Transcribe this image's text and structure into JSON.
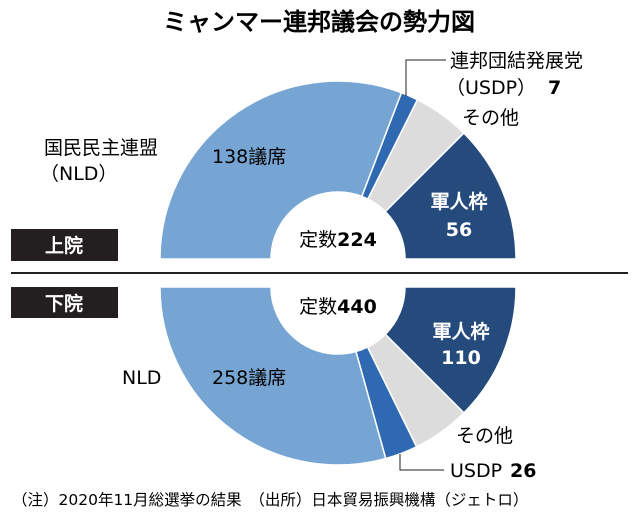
{
  "chart_data": {
    "type": "pie",
    "title": "ミャンマー連邦議会の勢力図",
    "colors": {
      "nld": "#76a5d3",
      "usdp": "#2e69b2",
      "other": "#dcdcdc",
      "military": "#244b7b",
      "house_badge": "#231f20"
    },
    "charts": [
      {
        "house": "上院",
        "total_label": "定数",
        "total": 224,
        "orientation": "upper-semicircle",
        "slices": [
          {
            "key": "nld",
            "name": "国民民主連盟（NLD）",
            "value": 138,
            "label": "138議席"
          },
          {
            "key": "usdp",
            "name": "連邦団結発展党（USDP）",
            "value": 7,
            "label": "7"
          },
          {
            "key": "other",
            "name": "その他",
            "value": 23,
            "label": ""
          },
          {
            "key": "military",
            "name": "軍人枠",
            "value": 56,
            "label": "56"
          }
        ]
      },
      {
        "house": "下院",
        "total_label": "定数",
        "total": 440,
        "orientation": "lower-semicircle",
        "slices": [
          {
            "key": "military",
            "name": "軍人枠",
            "value": 110,
            "label": "110"
          },
          {
            "key": "other",
            "name": "その他",
            "value": 46,
            "label": ""
          },
          {
            "key": "usdp",
            "name": "USDP",
            "value": 26,
            "label": "26"
          },
          {
            "key": "nld",
            "name": "NLD",
            "value": 258,
            "label": "258議席"
          }
        ]
      }
    ]
  },
  "text": {
    "title": "ミャンマー連邦議会の勢力図",
    "upper": {
      "house": "上院",
      "nld_name_line1": "国民民主連盟",
      "nld_name_line2": "（NLD）",
      "nld_seats": "138議席",
      "usdp_name_line1": "連邦団結発展党",
      "usdp_name_line2": "（USDP）",
      "usdp_value": "7",
      "other_name": "その他",
      "military_name": "軍人枠",
      "military_value": "56",
      "total_label": "定数",
      "total_value": "224"
    },
    "lower": {
      "house": "下院",
      "nld_name": "NLD",
      "nld_seats": "258議席",
      "usdp_name": "USDP",
      "usdp_value": "26",
      "other_name": "その他",
      "military_name": "軍人枠",
      "military_value": "110",
      "total_label": "定数",
      "total_value": "440"
    },
    "footnote": "（注）2020年11月総選挙の結果　（出所）日本貿易振興機構（ジェトロ）"
  }
}
